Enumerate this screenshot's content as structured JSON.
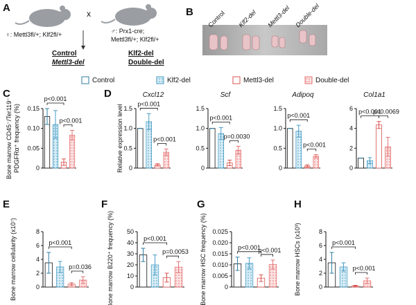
{
  "panel_a": {
    "letter": "A",
    "female": "♀: Mettl3fl/+; Klf2fl/+",
    "cross": "x",
    "male_line1": "♂: Prx1-cre;",
    "male_line2": "Mettl3fl/+; Klf2fl/+",
    "offspring": [
      "Control",
      "Mettl3-del",
      "Klf2-del",
      "Double-del"
    ]
  },
  "panel_b": {
    "letter": "B",
    "labels": [
      "Control",
      "Klf2-del",
      "Mettl3-del",
      "Double-del"
    ]
  },
  "legend": [
    {
      "name": "Control",
      "color": "#2e7ea0"
    },
    {
      "name": "Klf2-del",
      "color": "#4a9cc4"
    },
    {
      "name": "Mettl3-del",
      "color": "#d9534f"
    },
    {
      "name": "Double-del",
      "color": "#e57373"
    }
  ],
  "chart_data": [
    {
      "type": "bar",
      "panel": "C",
      "ylabel": [
        "Bone marrow CD45⁻/Ter119⁻",
        "PDGFRα⁺ frequency (%)"
      ],
      "values": [
        0.13,
        0.11,
        0.015,
        0.083
      ],
      "errors": [
        0.02,
        0.035,
        0.008,
        0.012
      ],
      "ylim": [
        0,
        0.15
      ],
      "yticks": [
        0,
        0.05,
        {
          "value": 0.1,
          "label": "0.10"
        },
        0.15
      ],
      "annotations": [
        "p<0.001",
        "p<0.001"
      ]
    },
    {
      "type": "bar",
      "panel": "D",
      "title": "Cxcl12",
      "ylabel": [
        "Relative expression level"
      ],
      "values": [
        1.0,
        1.17,
        0.08,
        0.4
      ],
      "errors": [
        0,
        0.2,
        0.03,
        0.08
      ],
      "ylim": [
        0,
        1.5
      ],
      "yticks": [
        0,
        0.5,
        {
          "value": 1,
          "label": "1.0"
        },
        1.5
      ],
      "annotations": [
        "p<0.001",
        "p<0.001"
      ]
    },
    {
      "type": "bar",
      "title": "Scf",
      "values": [
        1.0,
        0.87,
        0.13,
        0.45
      ],
      "errors": [
        0,
        0.15,
        0.07,
        0.1
      ],
      "ylim": [
        0,
        1.5
      ],
      "yticks": [
        0,
        0.5,
        {
          "value": 1,
          "label": "1.0"
        },
        1.5
      ],
      "annotations": [
        "p<0.001",
        "p=0.0030"
      ]
    },
    {
      "type": "bar",
      "title": "Adipoq",
      "values": [
        1.0,
        0.93,
        0.05,
        0.3
      ],
      "errors": [
        0,
        0.15,
        0.03,
        0.04
      ],
      "ylim": [
        0,
        1.5
      ],
      "yticks": [
        0,
        0.5,
        {
          "value": 1,
          "label": "1.0"
        },
        1.5
      ],
      "annotations": [
        "p<0.001",
        "p<0.001"
      ]
    },
    {
      "type": "bar",
      "title": "Col1a1",
      "values": [
        1.0,
        0.75,
        4.35,
        2.15
      ],
      "errors": [
        0,
        0.3,
        0.35,
        0.95
      ],
      "ylim": [
        0,
        6
      ],
      "yticks": [
        0,
        2,
        4,
        6
      ],
      "annotations": [
        "p<0.001",
        "p=0.0069"
      ]
    },
    {
      "type": "bar",
      "panel": "E",
      "ylabel": [
        "Bone marrow cellularity (x10⁷)"
      ],
      "values": [
        3.5,
        2.9,
        0.4,
        1.0
      ],
      "errors": [
        1.5,
        0.8,
        0.2,
        0.5
      ],
      "ylim": [
        0,
        8
      ],
      "yticks": [
        0,
        2,
        4,
        6,
        8
      ],
      "annotations": [
        "p<0.001",
        "p=0.036"
      ]
    },
    {
      "type": "bar",
      "panel": "F",
      "ylabel": [
        "Bone marrow B220⁺ frequency (%)"
      ],
      "values": [
        29,
        20,
        8.5,
        18
      ],
      "errors": [
        6,
        9,
        4,
        5
      ],
      "ylim": [
        0,
        50
      ],
      "yticks": [
        0,
        10,
        20,
        30,
        40,
        50
      ],
      "annotations": [
        "p<0.001",
        "p=0.0053"
      ]
    },
    {
      "type": "bar",
      "panel": "G",
      "ylabel": [
        "Bone marrow HSC frequency (%)"
      ],
      "values": [
        0.0105,
        0.0107,
        0.004,
        0.0102
      ],
      "errors": [
        0.003,
        0.0025,
        0.0015,
        0.002
      ],
      "ylim": [
        0,
        0.025
      ],
      "yticks": [
        0,
        0.005,
        {
          "value": 0.01,
          "label": "0.010"
        },
        0.015,
        {
          "value": 0.02,
          "label": "0.020"
        },
        0.025
      ],
      "annotations": [
        "p<0.001",
        "p<0.001"
      ]
    },
    {
      "type": "bar",
      "panel": "H",
      "ylabel": [
        "Bone marrow HSCs (x10³)"
      ],
      "values": [
        3.5,
        2.9,
        0.15,
        0.9
      ],
      "errors": [
        1.5,
        0.6,
        0.1,
        0.4
      ],
      "ylim": [
        0,
        8
      ],
      "yticks": [
        0,
        2,
        4,
        6,
        8
      ],
      "annotations": [
        "p<0.001",
        "p<0.001"
      ]
    }
  ]
}
